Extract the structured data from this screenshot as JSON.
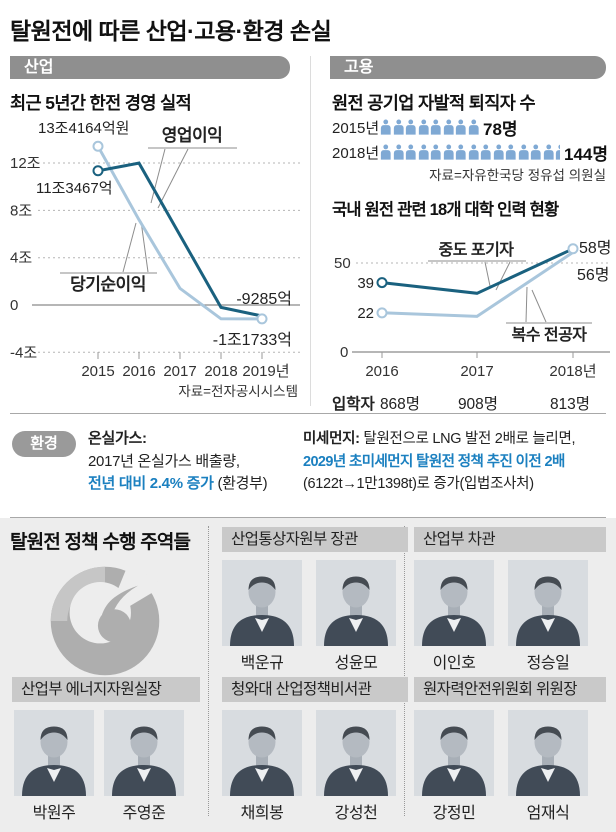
{
  "page": {
    "title": "탈원전에 따른 산업·고용·환경 손실"
  },
  "industry": {
    "section_label": "산업",
    "chart_title": "최근 5년간 한전 경영 실적"
  },
  "employment": {
    "section_label": "고용",
    "retirees": {
      "title": "원전 공기업 자발적 퇴직자 수",
      "rows": [
        {
          "year": "2015년",
          "count_label": "78명",
          "icons_full": 8,
          "icons_half": false
        },
        {
          "year": "2018년",
          "count_label": "144명",
          "icons_full": 14,
          "icons_half": true
        }
      ],
      "source": "자료=자유한국당 정유섭 의원실"
    },
    "university": {
      "title": "국내 원전 관련 18개 대학 인력 현황"
    }
  },
  "environment": {
    "section_label": "환경",
    "greenhouse": {
      "heading": "온실가스:",
      "line1": "2017년 온실가스 배출량,",
      "highlight": "전년 대비 2.4% 증가",
      "suffix": " (환경부)"
    },
    "fine_dust": {
      "heading": "미세먼지:",
      "line1": " 탈원전으로 LNG 발전 2배로 늘리면,",
      "highlight": "2029년 초미세먼지 탈원전 정책 추진 이전 2배",
      "line3": "(6122t→1만1398t)로 증가(입법조사처)"
    }
  },
  "people": {
    "title": "탈원전 정책 수행 주역들",
    "groups": [
      {
        "role": "산업통상자원부 장관",
        "members": [
          "백운규",
          "성윤모"
        ]
      },
      {
        "role": "산업부 차관",
        "members": [
          "이인호",
          "정승일"
        ]
      },
      {
        "role": "산업부 에너지자원실장",
        "members": [
          "박원주",
          "주영준"
        ]
      },
      {
        "role": "청와대 산업정책비서관",
        "members": [
          "채희봉",
          "강성천"
        ]
      },
      {
        "role": "원자력안전위원회 위원장",
        "members": [
          "강정민",
          "엄재식"
        ]
      }
    ]
  },
  "colors": {
    "line_dark": "#1a617f",
    "line_light": "#a9c6dc",
    "icon_blue": "#7fa9d4",
    "accent_blue": "#1b80c0",
    "header_gray": "#8f8f8f",
    "band_gray": "#c9c9c9"
  },
  "chart_data": [
    {
      "type": "line",
      "title": "최근 5년간 한전 경영 실적",
      "unit": "조 원 (KRW trillion)",
      "x": [
        "2015",
        "2016",
        "2017",
        "2018",
        "2019년"
      ],
      "series": [
        {
          "name": "영업이익",
          "values": [
            11.3467,
            12.0,
            5.9,
            -0.2,
            -0.9285
          ],
          "labels": {
            "start": "11조3467억",
            "end": "-9285억"
          },
          "color": "#1a617f"
        },
        {
          "name": "당기순이익",
          "values": [
            13.4164,
            7.2,
            1.4,
            -1.17,
            -1.1733
          ],
          "labels": {
            "start": "13조4164억원",
            "end": "-1조1733억"
          },
          "color": "#a9c6dc"
        }
      ],
      "yticks": [
        "12조",
        "8조",
        "4조",
        "0",
        "-4조"
      ],
      "ylim": [
        -4,
        14
      ],
      "grid": true,
      "note": "mid values estimated from chart pixels",
      "source": "자료=전자공시시스템"
    },
    {
      "type": "line",
      "title": "국내 원전 관련 18개 대학 인력 현황",
      "unit": "명",
      "x": [
        "2016",
        "2017",
        "2018년"
      ],
      "series": [
        {
          "name": "중도 포기자",
          "values": [
            39,
            33,
            58
          ],
          "start_label": "39",
          "end_label": "58명",
          "color": "#1a617f"
        },
        {
          "name": "복수 전공자",
          "values": [
            22,
            20,
            56
          ],
          "start_label": "22",
          "end_label": "56명",
          "color": "#a9c6dc"
        }
      ],
      "yticks": [
        "50",
        "0"
      ],
      "ylim": [
        0,
        66
      ],
      "grid": true,
      "note": "2017 values estimated from chart pixels",
      "enrollees": {
        "label": "입학자",
        "values": [
          "868명",
          "908명",
          "813명"
        ]
      }
    }
  ]
}
